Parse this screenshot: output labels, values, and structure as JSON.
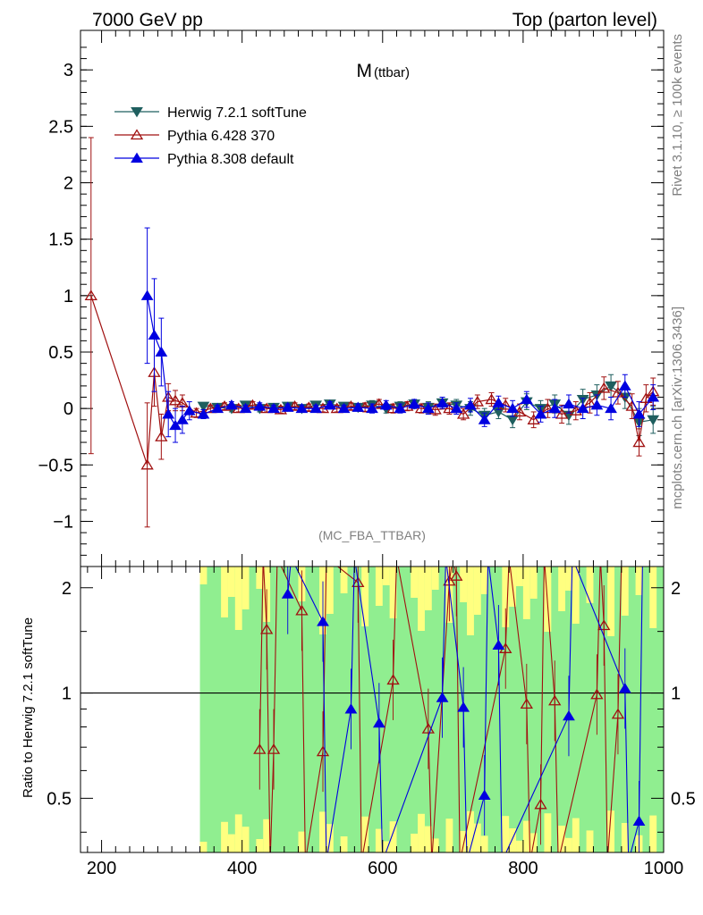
{
  "header": {
    "left": "7000 GeV pp",
    "right": "Top (parton level)"
  },
  "side_labels": {
    "rivet": "Rivet 3.1.10, ≥ 100k events",
    "mcplots": "mcplots.cern.ch [arXiv:1306.3436]"
  },
  "chart_data": [
    {
      "type": "scatter",
      "title": "M",
      "title_sub": "(ttbar)",
      "analysis_tag": "(MC_FBA_TTBAR)",
      "xlim": [
        170,
        1000
      ],
      "ylim": [
        -1.4,
        3.35
      ],
      "yticks": [
        -1,
        -0.5,
        0,
        0.5,
        1,
        1.5,
        2,
        2.5,
        3
      ],
      "ytick_labels": [
        "−1",
        "−0.5",
        "0",
        "0.5",
        "1",
        "1.5",
        "2",
        "2.5",
        "3"
      ],
      "legend_position": "top-left",
      "series": [
        {
          "name": "Herwig 7.2.1 softTune",
          "color": "#1f5f5f",
          "marker": "triangle-down-filled",
          "x": [
            345,
            365,
            385,
            405,
            425,
            445,
            465,
            485,
            505,
            525,
            545,
            565,
            585,
            605,
            625,
            645,
            665,
            685,
            705,
            725,
            745,
            765,
            785,
            805,
            825,
            845,
            865,
            885,
            905,
            925,
            945,
            965,
            985
          ],
          "y": [
            0.02,
            0.01,
            0.0,
            0.03,
            0.0,
            0.01,
            0.02,
            0.0,
            0.03,
            0.04,
            0.02,
            0.01,
            0.03,
            0.0,
            0.02,
            0.04,
            0.01,
            0.05,
            0.03,
            0.0,
            -0.06,
            -0.03,
            -0.1,
            0.06,
            0.0,
            0.04,
            -0.06,
            0.08,
            0.12,
            0.2,
            0.1,
            -0.12,
            -0.1
          ],
          "err": [
            0.03,
            0.03,
            0.03,
            0.03,
            0.03,
            0.03,
            0.03,
            0.03,
            0.03,
            0.03,
            0.03,
            0.03,
            0.04,
            0.04,
            0.04,
            0.04,
            0.05,
            0.05,
            0.05,
            0.06,
            0.06,
            0.06,
            0.07,
            0.07,
            0.07,
            0.08,
            0.08,
            0.09,
            0.09,
            0.1,
            0.1,
            0.12,
            0.12
          ]
        },
        {
          "name": "Pythia 6.428 370",
          "color": "#a01010",
          "marker": "triangle-up-open",
          "x": [
            185,
            265,
            275,
            285,
            295,
            305,
            315,
            335,
            355,
            375,
            395,
            415,
            435,
            455,
            475,
            495,
            515,
            535,
            555,
            575,
            595,
            615,
            635,
            655,
            675,
            695,
            715,
            735,
            755,
            775,
            795,
            815,
            835,
            855,
            875,
            895,
            915,
            935,
            955,
            965,
            975,
            985
          ],
          "y": [
            1.0,
            -0.5,
            0.32,
            -0.25,
            0.1,
            0.07,
            0.05,
            -0.04,
            0.0,
            0.02,
            0.0,
            0.03,
            0.0,
            -0.01,
            0.02,
            0.01,
            0.0,
            0.0,
            0.02,
            0.01,
            0.04,
            0.0,
            0.02,
            0.0,
            -0.01,
            0.0,
            -0.05,
            0.06,
            0.08,
            0.03,
            -0.03,
            -0.1,
            0.0,
            -0.05,
            -0.02,
            0.05,
            0.18,
            0.14,
            0.02,
            -0.3,
            0.09,
            0.15
          ],
          "err": [
            1.4,
            0.55,
            0.3,
            0.2,
            0.12,
            0.09,
            0.07,
            0.04,
            0.03,
            0.03,
            0.03,
            0.03,
            0.03,
            0.03,
            0.03,
            0.03,
            0.03,
            0.03,
            0.03,
            0.04,
            0.04,
            0.04,
            0.04,
            0.04,
            0.05,
            0.05,
            0.05,
            0.06,
            0.06,
            0.06,
            0.07,
            0.07,
            0.08,
            0.08,
            0.08,
            0.09,
            0.1,
            0.1,
            0.11,
            0.12,
            0.12,
            0.12
          ]
        },
        {
          "name": "Pythia 8.308 default",
          "color": "#0000e0",
          "marker": "triangle-up-filled",
          "x": [
            265,
            275,
            285,
            295,
            305,
            315,
            325,
            345,
            365,
            385,
            405,
            425,
            445,
            465,
            485,
            505,
            525,
            545,
            565,
            585,
            605,
            625,
            645,
            665,
            685,
            705,
            725,
            745,
            765,
            785,
            805,
            825,
            845,
            865,
            885,
            905,
            925,
            945,
            965,
            985
          ],
          "y": [
            1.0,
            0.65,
            0.5,
            -0.05,
            -0.15,
            -0.1,
            -0.02,
            -0.05,
            0.0,
            0.03,
            0.0,
            0.02,
            0.0,
            0.01,
            0.0,
            0.0,
            0.03,
            0.0,
            0.01,
            0.0,
            0.03,
            0.0,
            0.04,
            0.0,
            0.05,
            0.0,
            0.03,
            -0.1,
            0.05,
            0.0,
            0.08,
            -0.05,
            0.0,
            0.04,
            0.0,
            0.03,
            0.0,
            0.2,
            -0.05,
            0.1
          ],
          "err": [
            0.6,
            0.5,
            0.3,
            0.2,
            0.15,
            0.12,
            0.08,
            0.04,
            0.03,
            0.03,
            0.03,
            0.03,
            0.03,
            0.03,
            0.03,
            0.03,
            0.03,
            0.03,
            0.03,
            0.04,
            0.04,
            0.04,
            0.04,
            0.05,
            0.05,
            0.05,
            0.06,
            0.06,
            0.06,
            0.07,
            0.07,
            0.07,
            0.08,
            0.08,
            0.09,
            0.09,
            0.1,
            0.1,
            0.11,
            0.11
          ]
        }
      ]
    },
    {
      "type": "scatter",
      "ylabel": "Ratio to Herwig 7.2.1 softTune",
      "xlim": [
        170,
        1000
      ],
      "ylim": [
        0.35,
        2.3
      ],
      "xticks": [
        200,
        400,
        600,
        800,
        1000
      ],
      "xtick_labels": [
        "200",
        "400",
        "600",
        "800",
        "1000"
      ],
      "yticks": [
        0.5,
        1,
        2
      ],
      "ytick_labels": [
        "0.5",
        "1",
        "2"
      ],
      "reference_line": 1,
      "band_colors": {
        "inner": "#90ee90",
        "outer": "#ffff80"
      },
      "band_xrange": [
        340,
        1000
      ],
      "series": [
        {
          "name": "Pythia 6.428 370",
          "color": "#a01010",
          "marker": "triangle-up-open",
          "x": [
            425,
            435,
            445,
            485,
            515,
            565,
            615,
            665,
            695,
            705,
            775,
            805,
            825,
            845,
            905,
            915,
            935
          ],
          "y": [
            0.69,
            1.52,
            0.69,
            1.72,
            0.68,
            2.07,
            1.09,
            0.79,
            2.09,
            2.16,
            1.34,
            0.93,
            0.48,
            0.95,
            0.99,
            1.56,
            0.87
          ]
        },
        {
          "name": "Pythia 8.308 default",
          "color": "#0000e0",
          "marker": "triangle-up-filled",
          "x": [
            465,
            515,
            555,
            595,
            685,
            715,
            745,
            765,
            865,
            945,
            965
          ],
          "y": [
            1.92,
            1.6,
            0.9,
            0.82,
            0.97,
            0.91,
            0.51,
            1.37,
            0.86,
            1.03,
            0.43
          ]
        }
      ]
    }
  ]
}
